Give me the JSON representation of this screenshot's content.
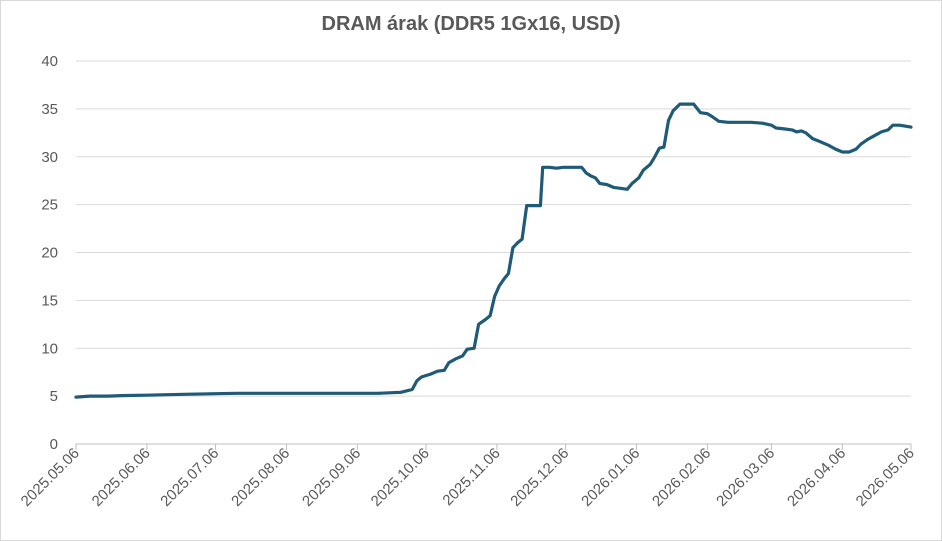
{
  "chart_data": {
    "type": "line",
    "title": "DRAM árak (DDR5 1Gx16, USD)",
    "xlabel": "",
    "ylabel": "",
    "ylim": [
      0,
      40
    ],
    "yticks": [
      0,
      5,
      10,
      15,
      20,
      25,
      30,
      35,
      40
    ],
    "xlim": [
      "2025-05-06",
      "2026-05-06"
    ],
    "xticks": [
      "2025.05.06",
      "2025.06.06",
      "2025.07.06",
      "2025.08.06",
      "2025.09.06",
      "2025.10.06",
      "2025.11.06",
      "2025.12.06",
      "2026.01.06",
      "2026.02.06",
      "2026.03.06",
      "2026.04.06",
      "2026.05.06"
    ],
    "grid": "horizontal",
    "legend": "none",
    "series": [
      {
        "color": "#1f5a78",
        "points": [
          [
            "2025-05-06",
            4.9
          ],
          [
            "2025-05-12",
            5.0
          ],
          [
            "2025-05-20",
            5.0
          ],
          [
            "2025-05-26",
            5.05
          ],
          [
            "2025-06-06",
            5.1
          ],
          [
            "2025-06-15",
            5.15
          ],
          [
            "2025-06-25",
            5.2
          ],
          [
            "2025-07-06",
            5.25
          ],
          [
            "2025-07-15",
            5.3
          ],
          [
            "2025-07-25",
            5.3
          ],
          [
            "2025-08-06",
            5.3
          ],
          [
            "2025-08-15",
            5.3
          ],
          [
            "2025-08-25",
            5.3
          ],
          [
            "2025-09-06",
            5.3
          ],
          [
            "2025-09-15",
            5.3
          ],
          [
            "2025-09-25",
            5.4
          ],
          [
            "2025-09-30",
            5.7
          ],
          [
            "2025-10-02",
            6.6
          ],
          [
            "2025-10-04",
            7.0
          ],
          [
            "2025-10-08",
            7.3
          ],
          [
            "2025-10-11",
            7.6
          ],
          [
            "2025-10-14",
            7.7
          ],
          [
            "2025-10-16",
            8.5
          ],
          [
            "2025-10-19",
            8.9
          ],
          [
            "2025-10-22",
            9.2
          ],
          [
            "2025-10-24",
            9.9
          ],
          [
            "2025-10-27",
            10.0
          ],
          [
            "2025-10-29",
            12.5
          ],
          [
            "2025-11-01",
            13.0
          ],
          [
            "2025-11-03",
            13.4
          ],
          [
            "2025-11-05",
            15.4
          ],
          [
            "2025-11-07",
            16.5
          ],
          [
            "2025-11-09",
            17.2
          ],
          [
            "2025-11-11",
            17.8
          ],
          [
            "2025-11-13",
            20.5
          ],
          [
            "2025-11-15",
            21.0
          ],
          [
            "2025-11-17",
            21.4
          ],
          [
            "2025-11-19",
            24.9
          ],
          [
            "2025-11-22",
            24.9
          ],
          [
            "2025-11-25",
            24.9
          ],
          [
            "2025-11-26",
            28.9
          ],
          [
            "2025-11-29",
            28.9
          ],
          [
            "2025-12-02",
            28.8
          ],
          [
            "2025-12-05",
            28.9
          ],
          [
            "2025-12-10",
            28.9
          ],
          [
            "2025-12-13",
            28.9
          ],
          [
            "2025-12-15",
            28.3
          ],
          [
            "2025-12-17",
            28.0
          ],
          [
            "2025-12-19",
            27.8
          ],
          [
            "2025-12-21",
            27.2
          ],
          [
            "2025-12-24",
            27.1
          ],
          [
            "2025-12-27",
            26.8
          ],
          [
            "2025-12-30",
            26.7
          ],
          [
            "2026-01-02",
            26.6
          ],
          [
            "2026-01-04",
            27.2
          ],
          [
            "2026-01-07",
            27.8
          ],
          [
            "2026-01-09",
            28.6
          ],
          [
            "2026-01-12",
            29.2
          ],
          [
            "2026-01-14",
            30.0
          ],
          [
            "2026-01-16",
            30.9
          ],
          [
            "2026-01-18",
            31.0
          ],
          [
            "2026-01-20",
            33.8
          ],
          [
            "2026-01-22",
            34.8
          ],
          [
            "2026-01-25",
            35.5
          ],
          [
            "2026-01-28",
            35.5
          ],
          [
            "2026-01-31",
            35.5
          ],
          [
            "2026-02-03",
            34.6
          ],
          [
            "2026-02-06",
            34.5
          ],
          [
            "2026-02-08",
            34.2
          ],
          [
            "2026-02-11",
            33.7
          ],
          [
            "2026-02-15",
            33.6
          ],
          [
            "2026-02-20",
            33.6
          ],
          [
            "2026-02-25",
            33.6
          ],
          [
            "2026-03-02",
            33.5
          ],
          [
            "2026-03-06",
            33.3
          ],
          [
            "2026-03-08",
            33.0
          ],
          [
            "2026-03-12",
            32.9
          ],
          [
            "2026-03-15",
            32.8
          ],
          [
            "2026-03-17",
            32.6
          ],
          [
            "2026-03-19",
            32.7
          ],
          [
            "2026-03-21",
            32.5
          ],
          [
            "2026-03-24",
            31.9
          ],
          [
            "2026-03-27",
            31.6
          ],
          [
            "2026-03-31",
            31.2
          ],
          [
            "2026-04-03",
            30.8
          ],
          [
            "2026-04-06",
            30.5
          ],
          [
            "2026-04-09",
            30.5
          ],
          [
            "2026-04-12",
            30.8
          ],
          [
            "2026-04-14",
            31.3
          ],
          [
            "2026-04-17",
            31.8
          ],
          [
            "2026-04-20",
            32.2
          ],
          [
            "2026-04-23",
            32.6
          ],
          [
            "2026-04-26",
            32.8
          ],
          [
            "2026-04-28",
            33.3
          ],
          [
            "2026-05-01",
            33.3
          ],
          [
            "2026-05-06",
            33.1
          ]
        ]
      }
    ]
  }
}
